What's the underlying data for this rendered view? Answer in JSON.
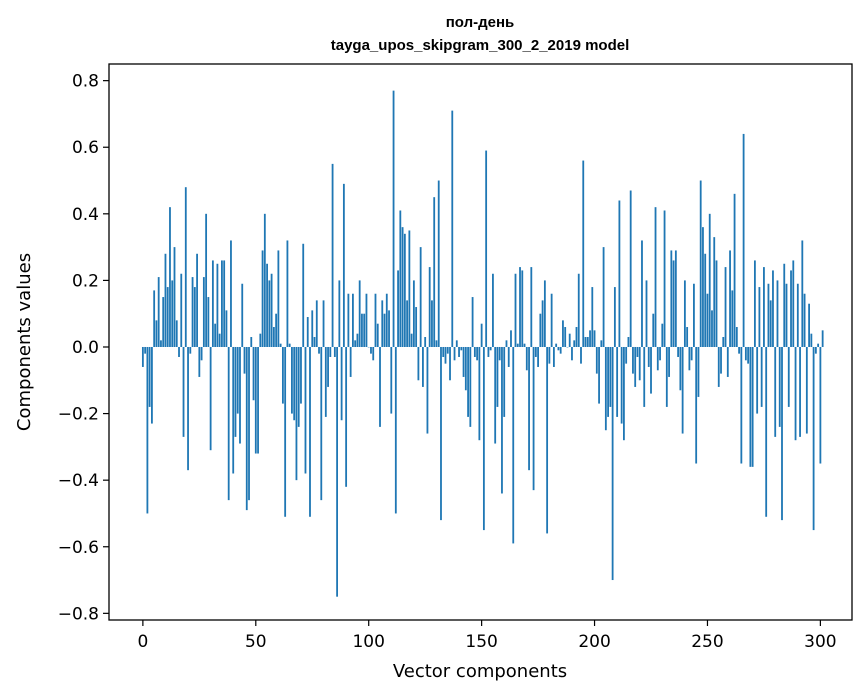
{
  "chart_data": {
    "type": "bar",
    "title": [
      "пол-день",
      "tayga_upos_skipgram_300_2_2019 model"
    ],
    "xlabel": "Vector components",
    "ylabel": "Components values",
    "xlim": [
      -15,
      314
    ],
    "ylim": [
      -0.82,
      0.85
    ],
    "x_ticks": [
      0,
      50,
      100,
      150,
      200,
      250,
      300
    ],
    "x_tick_labels": [
      "0",
      "50",
      "100",
      "150",
      "200",
      "250",
      "300"
    ],
    "y_ticks": [
      -0.8,
      -0.6,
      -0.4,
      -0.2,
      0.0,
      0.2,
      0.4,
      0.6,
      0.8
    ],
    "y_tick_labels": [
      "−0.8",
      "−0.6",
      "−0.4",
      "−0.2",
      "0.0",
      "0.2",
      "0.4",
      "0.6",
      "0.8"
    ],
    "grid": false,
    "bar_color": "#1f77b4",
    "x_start": 0,
    "values": [
      -0.06,
      -0.02,
      -0.5,
      -0.18,
      -0.23,
      0.17,
      0.08,
      0.21,
      0.02,
      0.15,
      0.28,
      0.18,
      0.42,
      0.2,
      0.3,
      0.08,
      -0.03,
      0.22,
      -0.27,
      0.48,
      -0.37,
      -0.02,
      0.21,
      0.18,
      0.28,
      -0.09,
      -0.04,
      0.21,
      0.4,
      0.15,
      -0.31,
      0.26,
      0.07,
      0.25,
      0.04,
      0.26,
      0.26,
      0.11,
      -0.46,
      0.32,
      -0.38,
      -0.27,
      -0.2,
      -0.29,
      0.19,
      -0.08,
      -0.49,
      -0.46,
      0.03,
      -0.16,
      -0.32,
      -0.32,
      0.04,
      0.29,
      0.4,
      0.25,
      0.2,
      0.22,
      0.06,
      0.1,
      0.29,
      0.01,
      -0.17,
      -0.51,
      0.32,
      0.01,
      -0.2,
      -0.22,
      -0.4,
      -0.24,
      -0.17,
      0.31,
      -0.38,
      0.09,
      -0.51,
      0.11,
      0.03,
      0.14,
      -0.02,
      -0.46,
      0.14,
      -0.21,
      -0.12,
      -0.03,
      0.55,
      -0.03,
      -0.75,
      0.2,
      -0.22,
      0.49,
      -0.42,
      0.16,
      -0.09,
      0.16,
      0.02,
      0.04,
      0.2,
      0.1,
      0.1,
      0.16,
      0.0,
      -0.02,
      -0.04,
      0.16,
      0.07,
      -0.24,
      0.14,
      0.1,
      0.16,
      0.11,
      -0.2,
      0.77,
      -0.5,
      0.23,
      0.41,
      0.36,
      0.34,
      0.14,
      0.35,
      0.04,
      0.2,
      0.12,
      -0.1,
      0.3,
      -0.12,
      0.03,
      -0.26,
      0.24,
      0.14,
      0.45,
      0.02,
      0.5,
      -0.52,
      -0.03,
      -0.05,
      -0.02,
      -0.1,
      0.71,
      -0.04,
      0.02,
      -0.03,
      -0.01,
      -0.09,
      -0.13,
      -0.21,
      -0.24,
      0.15,
      -0.03,
      -0.04,
      -0.28,
      0.07,
      -0.55,
      0.59,
      -0.03,
      -0.01,
      0.22,
      -0.29,
      -0.18,
      -0.04,
      -0.44,
      -0.21,
      0.02,
      -0.06,
      0.05,
      -0.59,
      0.22,
      0.01,
      0.24,
      0.23,
      0.01,
      -0.07,
      -0.37,
      0.24,
      -0.43,
      -0.03,
      -0.06,
      0.1,
      0.14,
      0.2,
      -0.56,
      -0.05,
      0.16,
      -0.06,
      0.01,
      -0.01,
      -0.02,
      0.08,
      0.06,
      0.0,
      0.04,
      -0.04,
      0.02,
      0.06,
      0.22,
      -0.05,
      0.56,
      0.03,
      0.03,
      0.05,
      0.18,
      0.05,
      -0.08,
      -0.17,
      0.02,
      0.3,
      -0.25,
      -0.21,
      -0.18,
      -0.7,
      0.18,
      -0.21,
      0.44,
      -0.23,
      -0.28,
      -0.05,
      0.03,
      0.47,
      -0.08,
      -0.12,
      -0.03,
      -0.1,
      0.32,
      -0.18,
      0.2,
      -0.06,
      -0.14,
      0.1,
      0.42,
      -0.07,
      -0.04,
      0.07,
      0.41,
      -0.18,
      -0.09,
      0.29,
      0.26,
      0.29,
      -0.03,
      -0.13,
      -0.26,
      0.2,
      0.06,
      -0.07,
      -0.04,
      0.19,
      -0.35,
      -0.15,
      0.5,
      0.36,
      0.28,
      0.16,
      0.4,
      0.11,
      0.33,
      0.26,
      -0.12,
      -0.08,
      0.03,
      0.24,
      -0.09,
      0.29,
      0.17,
      0.46,
      0.06,
      -0.02,
      -0.35,
      0.64,
      -0.04,
      -0.05,
      -0.36,
      -0.36,
      0.26,
      -0.2,
      0.18,
      -0.18,
      0.24,
      -0.51,
      0.19,
      0.14,
      0.23,
      -0.27,
      0.2,
      -0.24,
      -0.52,
      0.25,
      0.19,
      -0.18,
      0.23,
      0.26,
      -0.28,
      0.19,
      -0.27,
      0.32,
      0.16,
      -0.26,
      0.13,
      0.04,
      -0.55,
      -0.02,
      0.01,
      -0.35,
      0.05
    ]
  }
}
